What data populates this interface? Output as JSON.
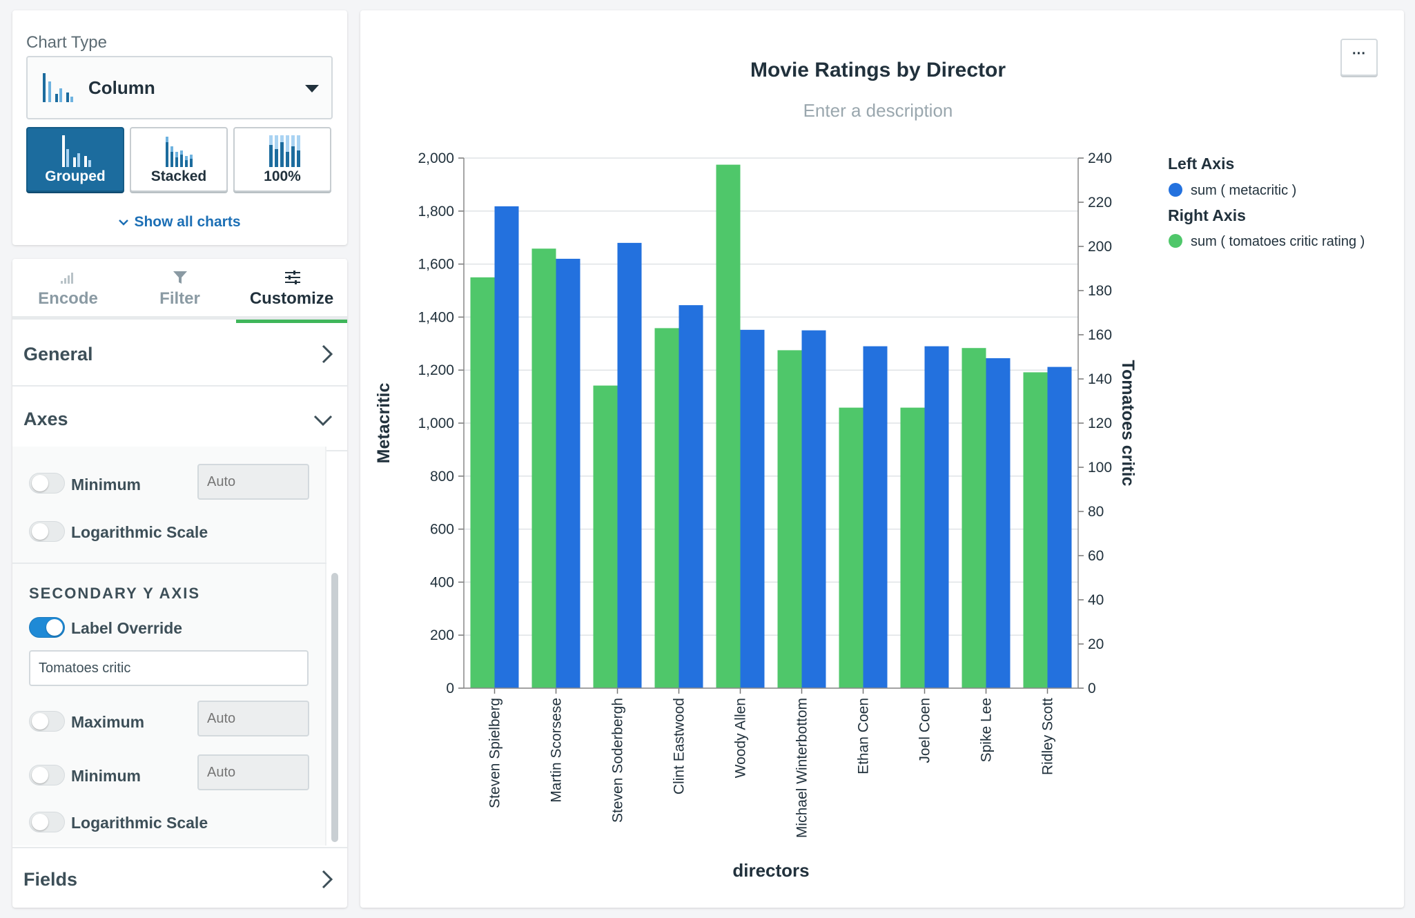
{
  "chart_type_panel": {
    "title": "Chart Type",
    "selected": "Column",
    "variants": [
      "Grouped",
      "Stacked",
      "100%"
    ],
    "active_variant": "Grouped",
    "show_all": "Show all charts"
  },
  "tabs": [
    {
      "label": "Encode",
      "icon": "bar-signal-icon"
    },
    {
      "label": "Filter",
      "icon": "funnel-icon"
    },
    {
      "label": "Customize",
      "icon": "sliders-icon"
    }
  ],
  "active_tab": "Customize",
  "sections": {
    "general": "General",
    "axes": "Axes",
    "fields": "Fields"
  },
  "axes_options": {
    "primary": {
      "minimum_label": "Minimum",
      "minimum_placeholder": "Auto",
      "log_label": "Logarithmic Scale"
    },
    "secondary": {
      "heading": "SECONDARY Y AXIS",
      "label_override": "Label Override",
      "label_override_on": true,
      "label_value": "Tomatoes critic",
      "maximum_label": "Maximum",
      "maximum_placeholder": "Auto",
      "minimum_label": "Minimum",
      "minimum_placeholder": "Auto",
      "log_label": "Logarithmic Scale"
    }
  },
  "more_button": "···",
  "chart_data": {
    "type": "bar",
    "title": "Movie Ratings by Director",
    "subtitle": "Enter a description",
    "xlabel": "directors",
    "ylabel": "Metacritic",
    "y2label": "Tomatoes critic",
    "ylim": [
      0,
      2000
    ],
    "y2lim": [
      0,
      240
    ],
    "yticks": [
      "0",
      "200",
      "400",
      "600",
      "800",
      "1,000",
      "1,200",
      "1,400",
      "1,600",
      "1,800",
      "2,000"
    ],
    "y2ticks": [
      "0",
      "20",
      "40",
      "60",
      "80",
      "100",
      "120",
      "140",
      "160",
      "180",
      "200",
      "220",
      "240"
    ],
    "categories": [
      "Steven Spielberg",
      "Martin Scorsese",
      "Steven Soderbergh",
      "Clint Eastwood",
      "Woody Allen",
      "Michael Winterbottom",
      "Ethan Coen",
      "Joel Coen",
      "Spike Lee",
      "Ridley Scott"
    ],
    "series": [
      {
        "name": "sum ( tomatoes critic rating )",
        "axis": "right",
        "color": "#4fc76a",
        "values": [
          186,
          199,
          137,
          163,
          237,
          153,
          127,
          127,
          154,
          143
        ]
      },
      {
        "name": "sum ( metacritic )",
        "axis": "left",
        "color": "#2371de",
        "values": [
          1818,
          1620,
          1680,
          1445,
          1352,
          1350,
          1290,
          1290,
          1245,
          1212
        ]
      }
    ],
    "legend": {
      "left_heading": "Left Axis",
      "left_items": [
        "sum ( metacritic )"
      ],
      "right_heading": "Right Axis",
      "right_items": [
        "sum ( tomatoes critic rating )"
      ],
      "position": "right"
    },
    "grid": true
  }
}
